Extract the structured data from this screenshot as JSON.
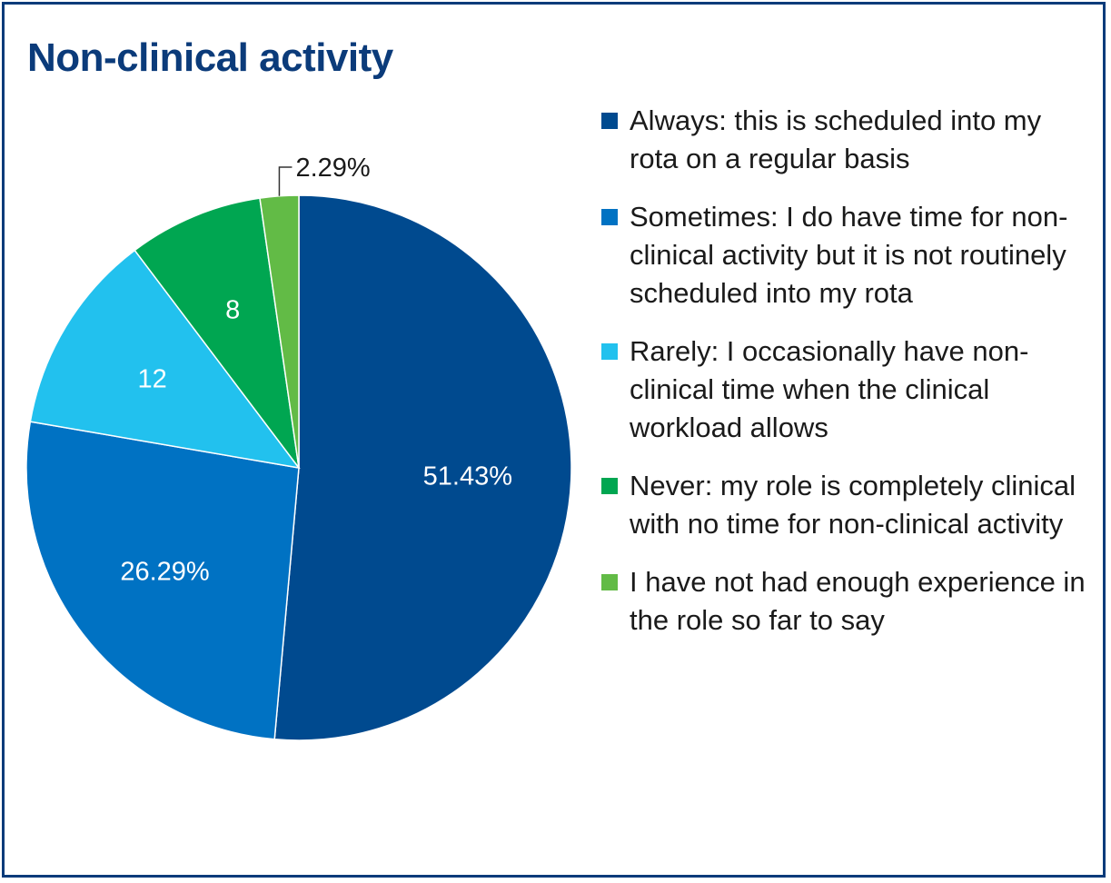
{
  "chart_data": {
    "type": "pie",
    "title": "Non-clinical activity",
    "slices": [
      {
        "label": "Always: this is scheduled into my rota on a regular basis",
        "value": 51.43,
        "display": "51.43%",
        "color": "#004a8f"
      },
      {
        "label": "Sometimes: I do have time for non-clinical activity but it is not routinely scheduled into my rota",
        "value": 26.29,
        "display": "26.29%",
        "color": "#0072c3"
      },
      {
        "label": "Rarely: I occasionally have non-clinical time when the clinical workload allows",
        "value": 12,
        "display": "12",
        "color": "#22c1ee"
      },
      {
        "label": "Never: my role is completely clinical with no time for non-clinical activity",
        "value": 8,
        "display": "8",
        "color": "#00a651"
      },
      {
        "label": "I have not had enough experience in the role so far to say",
        "value": 2.29,
        "display": "2.29%",
        "color": "#62bb46"
      }
    ],
    "legend_position": "right",
    "start_angle": "12 o'clock",
    "direction": "clockwise"
  }
}
